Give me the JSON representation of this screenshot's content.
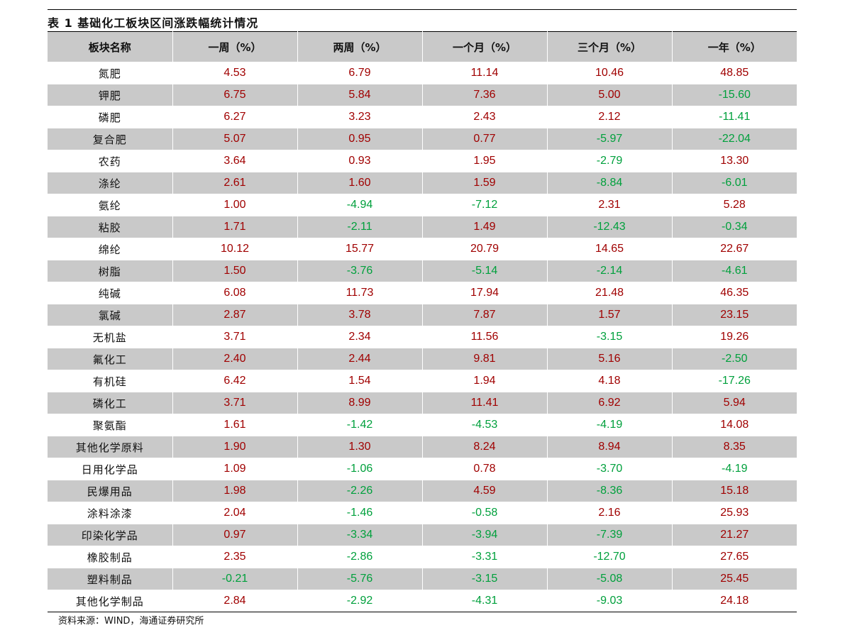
{
  "table": {
    "title": "表 1  基础化工板块区间涨跌幅统计情况",
    "headers": [
      "板块名称",
      "一周（%）",
      "两周（%）",
      "一个月（%）",
      "三个月（%）",
      "一年（%）"
    ],
    "rows": [
      {
        "name": "氮肥",
        "values": [
          "4.53",
          "6.79",
          "11.14",
          "10.46",
          "48.85"
        ]
      },
      {
        "name": "钾肥",
        "values": [
          "6.75",
          "5.84",
          "7.36",
          "5.00",
          "-15.60"
        ]
      },
      {
        "name": "磷肥",
        "values": [
          "6.27",
          "3.23",
          "2.43",
          "2.12",
          "-11.41"
        ]
      },
      {
        "name": "复合肥",
        "values": [
          "5.07",
          "0.95",
          "0.77",
          "-5.97",
          "-22.04"
        ]
      },
      {
        "name": "农药",
        "values": [
          "3.64",
          "0.93",
          "1.95",
          "-2.79",
          "13.30"
        ]
      },
      {
        "name": "涤纶",
        "values": [
          "2.61",
          "1.60",
          "1.59",
          "-8.84",
          "-6.01"
        ]
      },
      {
        "name": "氨纶",
        "values": [
          "1.00",
          "-4.94",
          "-7.12",
          "2.31",
          "5.28"
        ]
      },
      {
        "name": "粘胶",
        "values": [
          "1.71",
          "-2.11",
          "1.49",
          "-12.43",
          "-0.34"
        ]
      },
      {
        "name": "绵纶",
        "values": [
          "10.12",
          "15.77",
          "20.79",
          "14.65",
          "22.67"
        ]
      },
      {
        "name": "树脂",
        "values": [
          "1.50",
          "-3.76",
          "-5.14",
          "-2.14",
          "-4.61"
        ]
      },
      {
        "name": "纯碱",
        "values": [
          "6.08",
          "11.73",
          "17.94",
          "21.48",
          "46.35"
        ]
      },
      {
        "name": "氯碱",
        "values": [
          "2.87",
          "3.78",
          "7.87",
          "1.57",
          "23.15"
        ]
      },
      {
        "name": "无机盐",
        "values": [
          "3.71",
          "2.34",
          "11.56",
          "-3.15",
          "19.26"
        ]
      },
      {
        "name": "氟化工",
        "values": [
          "2.40",
          "2.44",
          "9.81",
          "5.16",
          "-2.50"
        ]
      },
      {
        "name": "有机硅",
        "values": [
          "6.42",
          "1.54",
          "1.94",
          "4.18",
          "-17.26"
        ]
      },
      {
        "name": "磷化工",
        "values": [
          "3.71",
          "8.99",
          "11.41",
          "6.92",
          "5.94"
        ]
      },
      {
        "name": "聚氨酯",
        "values": [
          "1.61",
          "-1.42",
          "-4.53",
          "-4.19",
          "14.08"
        ]
      },
      {
        "name": "其他化学原料",
        "values": [
          "1.90",
          "1.30",
          "8.24",
          "8.94",
          "8.35"
        ]
      },
      {
        "name": "日用化学品",
        "values": [
          "1.09",
          "-1.06",
          "0.78",
          "-3.70",
          "-4.19"
        ]
      },
      {
        "name": "民爆用品",
        "values": [
          "1.98",
          "-2.26",
          "4.59",
          "-8.36",
          "15.18"
        ]
      },
      {
        "name": "涂料涂漆",
        "values": [
          "2.04",
          "-1.46",
          "-0.58",
          "2.16",
          "25.93"
        ]
      },
      {
        "name": "印染化学品",
        "values": [
          "0.97",
          "-3.34",
          "-3.94",
          "-7.39",
          "21.27"
        ]
      },
      {
        "name": "橡胶制品",
        "values": [
          "2.35",
          "-2.86",
          "-3.31",
          "-12.70",
          "27.65"
        ]
      },
      {
        "name": "塑料制品",
        "values": [
          "-0.21",
          "-5.76",
          "-3.15",
          "-5.08",
          "25.45"
        ]
      },
      {
        "name": "其他化学制品",
        "values": [
          "2.84",
          "-2.92",
          "-4.31",
          "-9.03",
          "24.18"
        ]
      }
    ]
  },
  "source": "资料来源：WIND，海通证券研究所",
  "colors": {
    "positive": "#a00000",
    "negative": "#00a03c",
    "shade": "#c9c9c9"
  }
}
